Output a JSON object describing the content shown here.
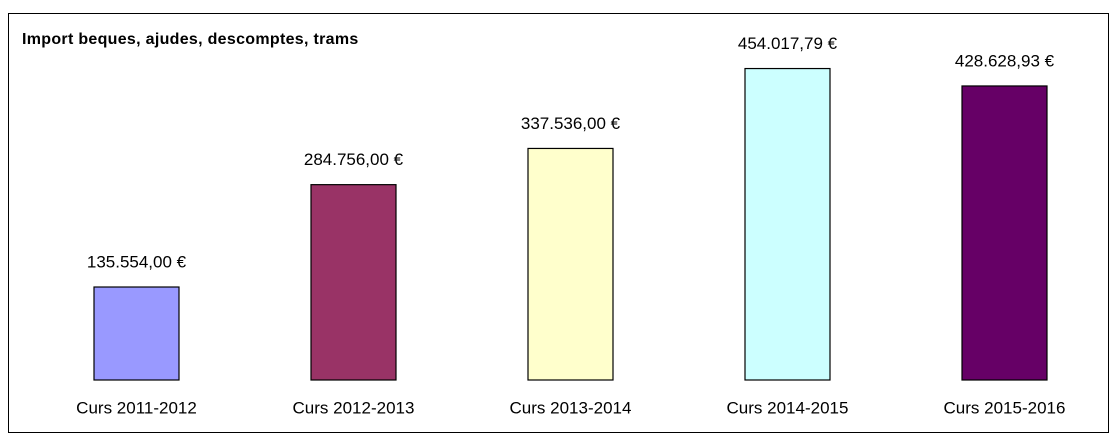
{
  "chart_data": {
    "type": "bar",
    "title": "Import beques, ajudes, descomptes, trams",
    "categories": [
      "Curs 2011-2012",
      "Curs 2012-2013",
      "Curs 2013-2014",
      "Curs 2014-2015",
      "Curs 2015-2016"
    ],
    "values": [
      135554.0,
      284756.0,
      337536.0,
      454017.79,
      428628.93
    ],
    "value_labels": [
      "135.554,00 €",
      "284.756,00 €",
      "337.536,00 €",
      "454.017,79 €",
      "428.628,93 €"
    ],
    "colors": [
      "#9999ff",
      "#993366",
      "#ffffcc",
      "#ccffff",
      "#660066"
    ],
    "ylim": [
      0,
      500000
    ]
  }
}
